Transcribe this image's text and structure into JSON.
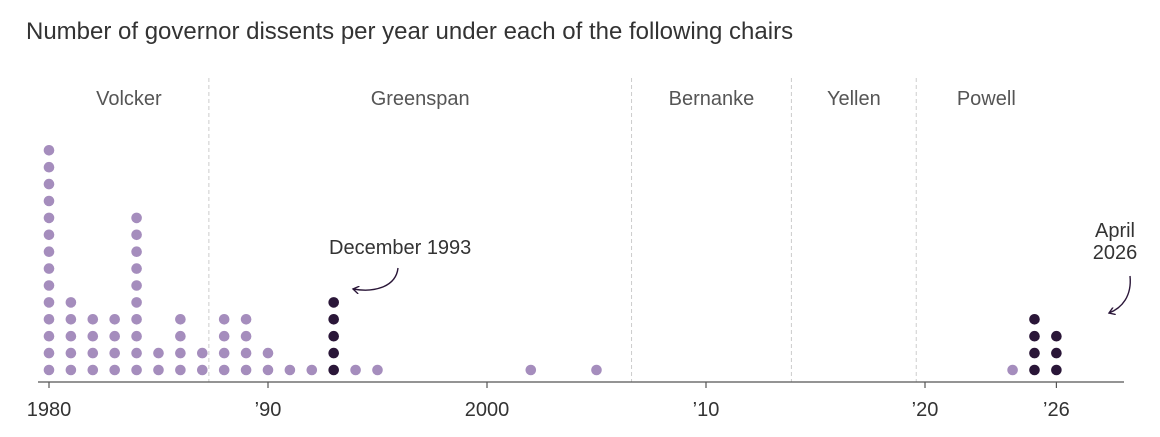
{
  "title": "Number of governor dissents per year under each of the following chairs",
  "colors": {
    "light_dot": "#a58dbd",
    "dark_dot": "#2a1638",
    "text": "#333333",
    "era_label": "#555555",
    "divider": "#cccccc",
    "axis": "#555555"
  },
  "chart_data": {
    "type": "scatter",
    "title": "Number of governor dissents per year under each of the following chairs",
    "xlim": [
      1980,
      2026
    ],
    "eras": [
      {
        "name": "Volcker",
        "start": 1980,
        "end": 1987.3
      },
      {
        "name": "Greenspan",
        "start": 1987.3,
        "end": 2006.6
      },
      {
        "name": "Bernanke",
        "start": 2006.6,
        "end": 2013.9
      },
      {
        "name": "Yellen",
        "start": 2013.9,
        "end": 2019.6
      },
      {
        "name": "Powell",
        "start": 2019.6,
        "end": 2026
      }
    ],
    "x_ticks": [
      {
        "value": 1980,
        "label": "1980"
      },
      {
        "value": 1990,
        "label": "’90"
      },
      {
        "value": 2000,
        "label": "2000"
      },
      {
        "value": 2010,
        "label": "’10"
      },
      {
        "value": 2020,
        "label": "’20"
      },
      {
        "value": 2026,
        "label": "’26"
      }
    ],
    "years": [
      1980,
      1981,
      1982,
      1983,
      1984,
      1985,
      1986,
      1987,
      1988,
      1989,
      1990,
      1991,
      1992,
      1993,
      1994,
      1995,
      2002,
      2005,
      2024,
      2025,
      2026
    ],
    "dissents": [
      14,
      5,
      4,
      4,
      10,
      2,
      4,
      2,
      4,
      4,
      2,
      1,
      0,
      5,
      0,
      0,
      0,
      0,
      0,
      4,
      3
    ],
    "highlight_dissents": [
      0,
      0,
      0,
      0,
      0,
      0,
      0,
      0,
      0,
      0,
      0,
      0,
      0,
      5,
      0,
      0,
      0,
      0,
      0,
      4,
      3
    ],
    "annotations": [
      {
        "lines": [
          "December 1993"
        ],
        "year": 1993
      },
      {
        "lines": [
          "April",
          "2026"
        ],
        "year": 2026
      }
    ]
  }
}
